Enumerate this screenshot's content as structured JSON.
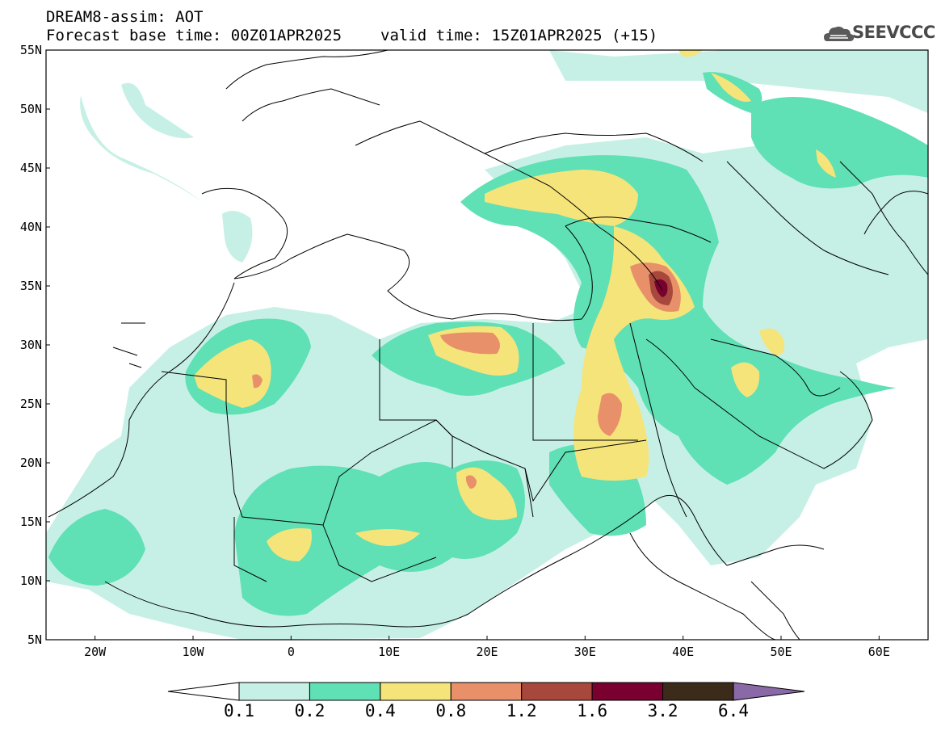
{
  "header": {
    "title": "DREAM8-assim: AOT",
    "base_time": "Forecast base time: 00Z01APR2025",
    "valid_time": "valid time: 15Z01APR2025 (+15)"
  },
  "logo": {
    "text": "SEEVCCC",
    "icon": "cloud-icon"
  },
  "map": {
    "variable": "AOT",
    "lat_labels": [
      "55N",
      "50N",
      "45N",
      "40N",
      "35N",
      "30N",
      "25N",
      "20N",
      "15N",
      "10N",
      "5N"
    ],
    "lon_labels": [
      "20W",
      "10W",
      "0",
      "10E",
      "20E",
      "30E",
      "40E",
      "50E",
      "60E"
    ],
    "lon_range": [
      -25,
      65
    ],
    "lat_range": [
      5,
      55
    ]
  },
  "colorbar": {
    "labels": [
      "0.1",
      "0.2",
      "0.4",
      "0.8",
      "1.2",
      "1.6",
      "3.2",
      "6.4"
    ],
    "colors": [
      "#ffffff",
      "#c6f0e6",
      "#5fe0b5",
      "#f5e47a",
      "#e8906a",
      "#a8483c",
      "#7a0030",
      "#3c2a1a",
      "#8a6aa6"
    ]
  }
}
